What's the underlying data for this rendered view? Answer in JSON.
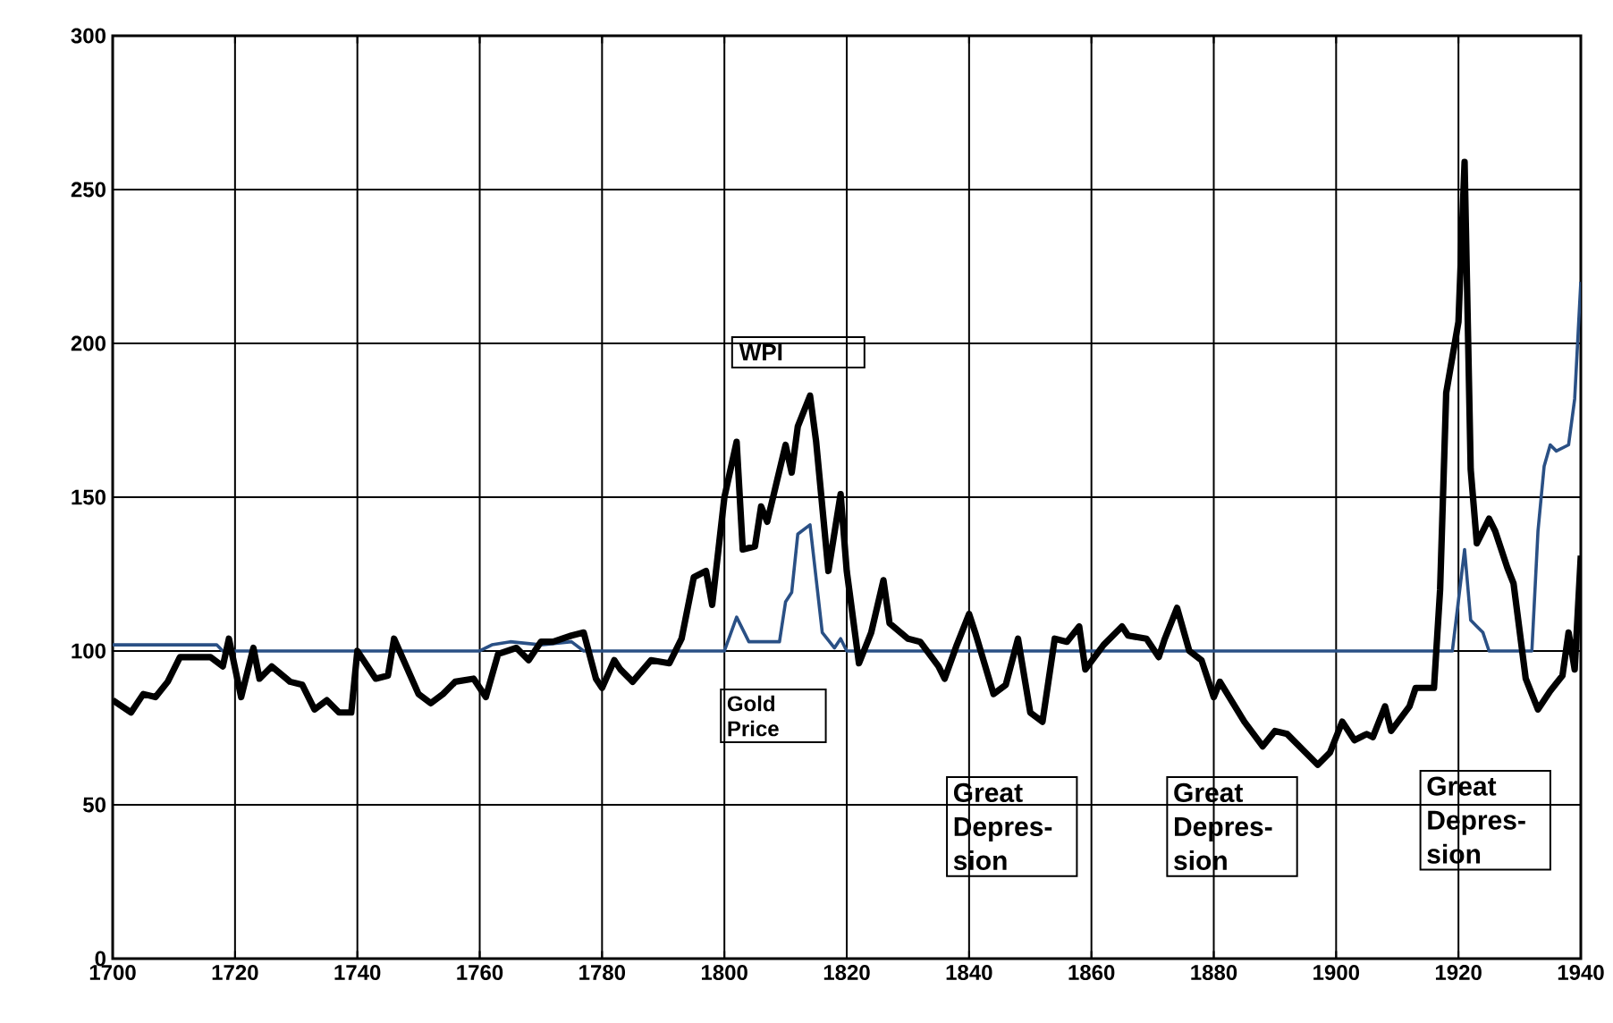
{
  "chart_data": {
    "type": "line",
    "xlim": [
      1700,
      1940
    ],
    "ylim": [
      0,
      300
    ],
    "xticks": [
      1700,
      1720,
      1740,
      1760,
      1780,
      1800,
      1820,
      1840,
      1860,
      1880,
      1900,
      1920,
      1940
    ],
    "yticks": [
      0,
      50,
      100,
      150,
      200,
      250,
      300
    ],
    "grid": true,
    "marker": "none",
    "line_style": "solid",
    "series": [
      {
        "color": "#2a5085",
        "x": [
          1700,
          1717,
          1718,
          1760,
          1762,
          1765,
          1770,
          1775,
          1777,
          1800,
          1802,
          1804,
          1809,
          1810,
          1811,
          1812,
          1814,
          1816,
          1818,
          1819,
          1820,
          1918,
          1919,
          1921,
          1922,
          1923,
          1924,
          1925,
          1932,
          1933,
          1934,
          1935,
          1936,
          1938,
          1939,
          1940
        ],
        "values": [
          102,
          102,
          100,
          100,
          102,
          103,
          102,
          103,
          100,
          100,
          111,
          103,
          103,
          116,
          119,
          138,
          141,
          106,
          101,
          104,
          100,
          100,
          100,
          133,
          110,
          108,
          106,
          100,
          100,
          139,
          160,
          167,
          165,
          167,
          182,
          220
        ]
      },
      {
        "color": "#000000",
        "x": [
          1700,
          1703,
          1705,
          1707,
          1709,
          1711,
          1713,
          1716,
          1718,
          1719,
          1721,
          1722,
          1723,
          1724,
          1726,
          1729,
          1731,
          1733,
          1735,
          1737,
          1739,
          1740,
          1743,
          1745,
          1746,
          1748,
          1750,
          1752,
          1754,
          1756,
          1759,
          1761,
          1763,
          1766,
          1768,
          1770,
          1772,
          1775,
          1777,
          1779,
          1780,
          1782,
          1783,
          1785,
          1788,
          1791,
          1793,
          1795,
          1797,
          1798,
          1800,
          1802,
          1803,
          1805,
          1806,
          1807,
          1810,
          1811,
          1812,
          1814,
          1815,
          1817,
          1819,
          1820,
          1822,
          1824,
          1826,
          1827,
          1830,
          1832,
          1835,
          1836,
          1838,
          1840,
          1841,
          1844,
          1846,
          1848,
          1850,
          1852,
          1854,
          1856,
          1858,
          1859,
          1862,
          1865,
          1866,
          1869,
          1871,
          1872,
          1874,
          1876,
          1878,
          1880,
          1881,
          1885,
          1888,
          1890,
          1892,
          1895,
          1897,
          1899,
          1901,
          1903,
          1905,
          1906,
          1908,
          1909,
          1912,
          1913,
          1916,
          1917,
          1918,
          1920,
          1921,
          1922,
          1923,
          1925,
          1926,
          1928,
          1929,
          1931,
          1933,
          1935,
          1937,
          1938,
          1939,
          1940
        ],
        "values": [
          84,
          80,
          86,
          85,
          90,
          98,
          98,
          98,
          95,
          104,
          85,
          93,
          101,
          91,
          95,
          90,
          89,
          81,
          84,
          80,
          80,
          100,
          91,
          92,
          104,
          95,
          86,
          83,
          86,
          90,
          91,
          85,
          99,
          101,
          97,
          103,
          103,
          105,
          106,
          91,
          88,
          97,
          94,
          90,
          97,
          96,
          104,
          124,
          126,
          115,
          150,
          168,
          133,
          134,
          147,
          142,
          167,
          158,
          173,
          183,
          168,
          126,
          151,
          126,
          96,
          106,
          123,
          109,
          104,
          103,
          95,
          91,
          102,
          112,
          106,
          86,
          89,
          104,
          80,
          77,
          104,
          103,
          108,
          94,
          102,
          108,
          105,
          104,
          98,
          104,
          114,
          100,
          97,
          85,
          90,
          77,
          69,
          74,
          73,
          67,
          63,
          67,
          77,
          71,
          73,
          72,
          82,
          74,
          82,
          88,
          88,
          120,
          184,
          207,
          259,
          159,
          135,
          143,
          139,
          127,
          122,
          91,
          81,
          87,
          92,
          106,
          94,
          131
        ]
      }
    ],
    "annotations": [
      "WPI",
      "Gold Price",
      "Great Depres-sion",
      "Great Depres-sion",
      "Great Depres-sion"
    ]
  }
}
